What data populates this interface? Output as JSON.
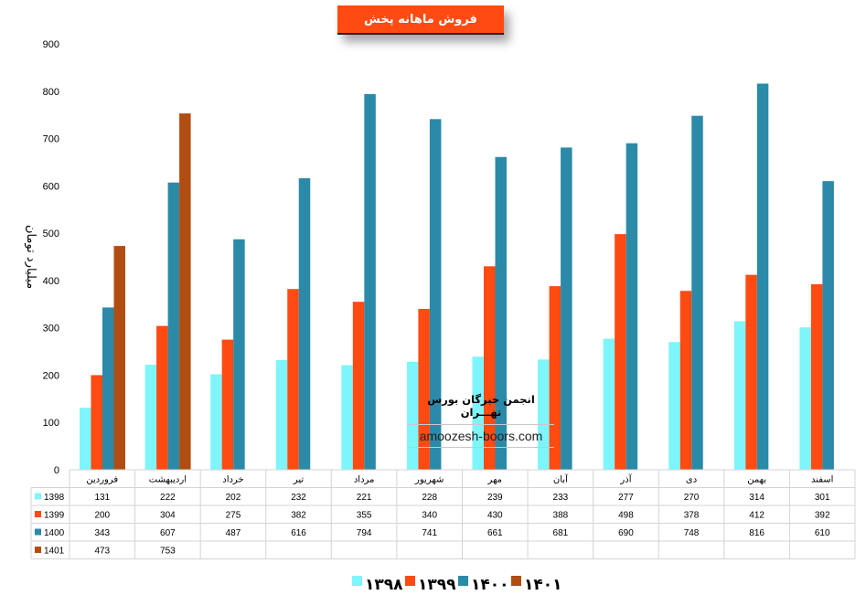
{
  "title": "فروش ماهانه پخش",
  "watermark": {
    "title": "انجمن خبرگان بورس تهـــران",
    "url": "amoozesh-boors.com"
  },
  "colors": {
    "1398": "#7ef5fb",
    "1399": "#ff4a12",
    "1400": "#2b8aa8",
    "1401": "#b14d12",
    "title_bg": "#ff4a12"
  },
  "chart_data": {
    "type": "bar",
    "ylabel": "میلیارد تومان",
    "ylim": [
      0,
      900
    ],
    "yticks": [
      0,
      100,
      200,
      300,
      400,
      500,
      600,
      700,
      800,
      900
    ],
    "grid": false,
    "legend_position": "bottom",
    "categories": [
      "فروردین",
      "اردیبهشت",
      "خرداد",
      "تیر",
      "مرداد",
      "شهریور",
      "مهر",
      "آبان",
      "آذر",
      "دی",
      "بهمن",
      "اسفند"
    ],
    "series": [
      {
        "name": "1398",
        "legend_label": "۱۳۹۸",
        "values": [
          131,
          222,
          202,
          232,
          221,
          228,
          239,
          233,
          277,
          270,
          314,
          301
        ]
      },
      {
        "name": "1399",
        "legend_label": "۱۳۹۹",
        "values": [
          200,
          304,
          275,
          382,
          355,
          340,
          430,
          388,
          498,
          378,
          412,
          392
        ]
      },
      {
        "name": "1400",
        "legend_label": "۱۴۰۰",
        "values": [
          343,
          607,
          487,
          616,
          794,
          741,
          661,
          681,
          690,
          748,
          816,
          610
        ]
      },
      {
        "name": "1401",
        "legend_label": "۱۴۰۱",
        "values": [
          473,
          753,
          null,
          null,
          null,
          null,
          null,
          null,
          null,
          null,
          null,
          null
        ]
      }
    ]
  }
}
